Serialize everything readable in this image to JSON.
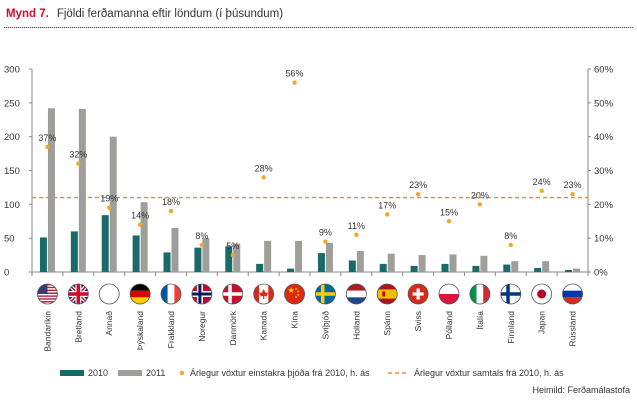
{
  "header": {
    "number": "Mynd 7.",
    "title": "Fjöldi ferðamanna eftir löndum (í þúsundum)"
  },
  "source": "Heimild: Ferðamálastofa",
  "colors": {
    "bar2010": "#1b6a6a",
    "bar2011": "#9e9e9a",
    "growth_dot": "#f5a623",
    "overall_line": "#e98a3c"
  },
  "chart_data": {
    "type": "bar",
    "title": "Fjöldi ferðamanna eftir löndum (í þúsundum)",
    "categories": [
      "Bandaríkin",
      "Bretland",
      "Annað",
      "Þýskaland",
      "Frakkland",
      "Noregur",
      "Danmörk",
      "Kanada",
      "Kína",
      "Svíþjóð",
      "Holland",
      "Spánn",
      "Sviss",
      "Pólland",
      "Ítalía",
      "Finnland",
      "Japan",
      "Rússland"
    ],
    "flags": [
      "us-flag",
      "uk-flag",
      "other-circle",
      "de-flag",
      "fr-flag",
      "no-flag",
      "dk-flag",
      "ca-flag",
      "cn-flag",
      "se-flag",
      "nl-flag",
      "es-flag",
      "ch-flag",
      "pl-flag",
      "it-flag",
      "fi-flag",
      "jp-flag",
      "ru-flag"
    ],
    "series": [
      {
        "name": "2010",
        "axis": "left",
        "values": [
          51,
          60,
          84,
          54,
          29,
          36,
          38,
          12,
          5,
          28,
          17,
          12,
          9,
          12,
          9,
          11,
          6,
          3
        ]
      },
      {
        "name": "2011",
        "axis": "left",
        "values": [
          242,
          241,
          200,
          103,
          65,
          50,
          42,
          46,
          46,
          43,
          31,
          27,
          25,
          26,
          24,
          16,
          16,
          5
        ]
      },
      {
        "name": "Árlegur vöxtur einstakra þjóða frá 2010, h. ás",
        "axis": "right",
        "type": "scatter",
        "values": [
          37,
          32,
          19,
          14,
          18,
          8,
          5,
          28,
          56,
          9,
          11,
          17,
          23,
          15,
          20,
          8,
          24,
          23
        ],
        "labels": [
          "37%",
          "32%",
          "19%",
          "14%",
          "18%",
          "8%",
          "5%",
          "28%",
          "56%",
          "9%",
          "11%",
          "17%",
          "23%",
          "15%",
          "20%",
          "8%",
          "24%",
          "23%"
        ]
      },
      {
        "name": "Árlegur vöxtur samtals frá 2010, h. ás",
        "axis": "right",
        "type": "line",
        "value": 22
      }
    ],
    "ylim": [
      0,
      300
    ],
    "yticks": [
      "0",
      "50",
      "100",
      "150",
      "200",
      "250",
      "300"
    ],
    "y2lim": [
      0,
      60
    ],
    "y2ticks": [
      "0%",
      "10%",
      "20%",
      "30%",
      "40%",
      "50%",
      "60%"
    ],
    "legend": {
      "bar2010": "2010",
      "bar2011": "2011",
      "dots": "Árlegur vöxtur einstakra þjóða frá 2010, h. ás",
      "line": "Árlegur vöxtur samtals frá 2010, h. ás"
    }
  }
}
